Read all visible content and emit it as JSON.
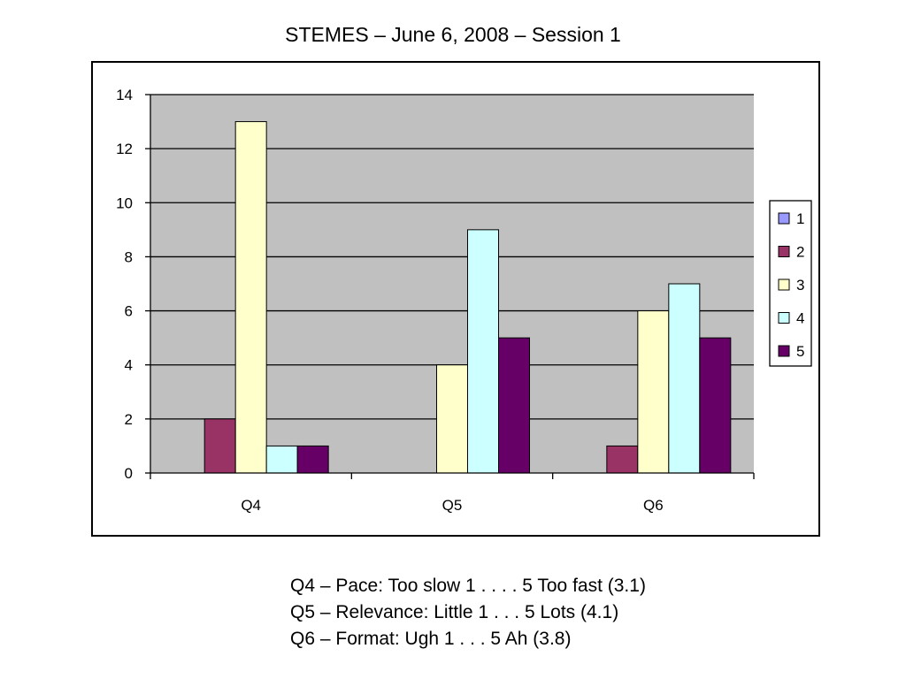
{
  "title": "STEMES – June 6, 2008 – Session 1",
  "notes": [
    "Q4 – Pace: Too slow 1 . . . . 5 Too fast (3.1)",
    "Q5 – Relevance: Little 1 . . . 5 Lots (4.1)",
    "Q6 – Format: Ugh 1 . . . 5 Ah (3.8)"
  ],
  "colors": {
    "plot_background": "#c0c0c0",
    "gridline": "#000000",
    "frame": "#000000"
  },
  "chart_data": {
    "type": "bar",
    "title": "STEMES – June 6, 2008 – Session 1",
    "xlabel": "",
    "ylabel": "",
    "categories": [
      "Q4",
      "Q5",
      "Q6"
    ],
    "series": [
      {
        "name": "1",
        "color": "#9999ff",
        "values": [
          0,
          0,
          0
        ]
      },
      {
        "name": "2",
        "color": "#993366",
        "values": [
          2,
          0,
          1
        ]
      },
      {
        "name": "3",
        "color": "#ffffcc",
        "values": [
          13,
          4,
          6
        ]
      },
      {
        "name": "4",
        "color": "#ccffff",
        "values": [
          1,
          9,
          7
        ]
      },
      {
        "name": "5",
        "color": "#660066",
        "values": [
          1,
          5,
          5
        ]
      }
    ],
    "ylim": [
      0,
      14
    ],
    "yticks": [
      0,
      2,
      4,
      6,
      8,
      10,
      12,
      14
    ],
    "grid": true,
    "legend": "right"
  }
}
